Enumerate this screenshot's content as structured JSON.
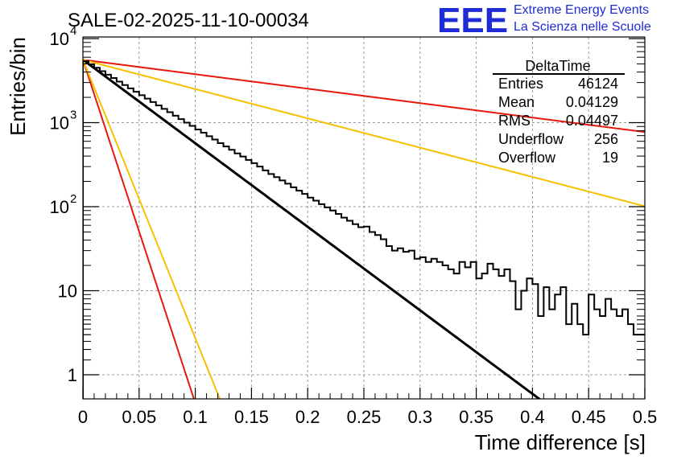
{
  "chart_data": {
    "type": "histogram",
    "title": "SALE-02-2025-11-10-00034",
    "xlabel": "Time difference [s]",
    "ylabel": "Entries/bin",
    "xlim": [
      0,
      0.5
    ],
    "ylim": [
      0.5,
      10000
    ],
    "yscale": "log",
    "grid": true,
    "x_ticks": [
      "0",
      "0.05",
      "0.1",
      "0.15",
      "0.2",
      "0.25",
      "0.3",
      "0.35",
      "0.4",
      "0.45",
      "0.5"
    ],
    "y_ticks": [
      {
        "value": 1,
        "label": "1"
      },
      {
        "value": 10,
        "label": "10"
      },
      {
        "value": 100,
        "label": "10",
        "exp": "2"
      },
      {
        "value": 1000,
        "label": "10",
        "exp": "3"
      },
      {
        "value": 10000,
        "label": "10",
        "exp": "4"
      }
    ],
    "bin_width": 0.005,
    "histogram_counts": [
      5400,
      4950,
      4500,
      4100,
      3720,
      3400,
      3080,
      2800,
      2560,
      2330,
      2120,
      1930,
      1760,
      1600,
      1460,
      1330,
      1210,
      1100,
      1000,
      915,
      830,
      760,
      690,
      630,
      570,
      520,
      475,
      430,
      395,
      360,
      330,
      300,
      270,
      245,
      225,
      205,
      188,
      170,
      155,
      142,
      128,
      118,
      107,
      98,
      90,
      82,
      74,
      68,
      62,
      57,
      58,
      50,
      46,
      41,
      34,
      30,
      32,
      29,
      30,
      24,
      25,
      22,
      24,
      22,
      20,
      18,
      16,
      22,
      19,
      22,
      14,
      16,
      21,
      18,
      15,
      18,
      13,
      6,
      10,
      14,
      12,
      5,
      11,
      6,
      9,
      11,
      4,
      7,
      4,
      3,
      9,
      6,
      5,
      8,
      6,
      5,
      6,
      4,
      3,
      3,
      3,
      3,
      3,
      1,
      0,
      1,
      1,
      1,
      2,
      1,
      2,
      1,
      2,
      1,
      1,
      0,
      1,
      0,
      1,
      1,
      1,
      0,
      1,
      1
    ],
    "fit_curves": [
      {
        "name": "exp-fit",
        "color": "#000000",
        "A": 5600,
        "tau": 0.0437,
        "x_range": [
          0,
          0.5
        ]
      },
      {
        "name": "upper-slow",
        "color": "#e8170c",
        "A": 5600,
        "tau": 0.2525,
        "x_range": [
          0,
          0.5
        ]
      },
      {
        "name": "mid-slow",
        "color": "#f7c100",
        "A": 5600,
        "tau": 0.1246,
        "x_range": [
          0,
          0.5
        ]
      },
      {
        "name": "fast-1",
        "color": "#e8170c",
        "A": 5600,
        "tau": 0.01063,
        "x_range": [
          0,
          0.5
        ]
      },
      {
        "name": "fast-2",
        "color": "#f7c100",
        "A": 5600,
        "tau": 0.01311,
        "x_range": [
          0,
          0.5
        ]
      }
    ],
    "stats_box": {
      "title": "DeltaTime",
      "rows": [
        {
          "label": "Entries",
          "value": "46124"
        },
        {
          "label": "Mean",
          "value": "0.04129"
        },
        {
          "label": "RMS",
          "value": "0.04497"
        },
        {
          "label": "Underflow",
          "value": "256"
        },
        {
          "label": "Overflow",
          "value": "19"
        }
      ]
    },
    "logo": {
      "mark": "EEE",
      "line1": "Extreme Energy Events",
      "line2": "La Scienza nelle Scuole",
      "color": "#1f2bd6"
    }
  }
}
